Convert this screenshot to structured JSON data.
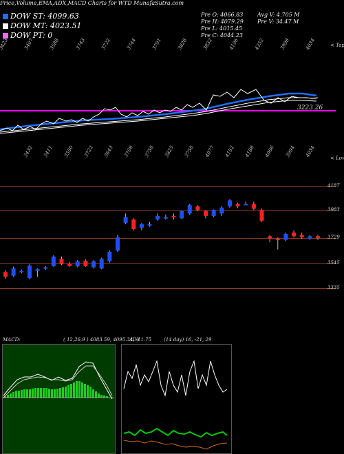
{
  "header": {
    "title": "Price,Volume,EMA,ADX,MACD Charts for WTD MunafaSutra.com"
  },
  "legend": [
    {
      "label": "DOW ST: 4099.63",
      "color": "#1e6fff"
    },
    {
      "label": "DOW MT: 4023.51",
      "color": "#ffffff"
    },
    {
      "label": "DOW PT: 0",
      "color": "#ff66ff"
    }
  ],
  "ohlc": {
    "open": "Pre  O: 4066.83",
    "high": "Pre  H: 4079.29",
    "low": "Pre  L: 4015.45",
    "close": "Pre  C: 4044.23",
    "avg_vol": "Avg V: 4.705 M",
    "pre_vol": "Pre  V: 34.47 M"
  },
  "top_ticks": [
    "3423",
    "3407",
    "3588",
    "3743",
    "3722",
    "3744",
    "3791",
    "3828",
    "3832",
    "4196",
    "4252",
    "3998",
    "4034"
  ],
  "mid_ticks": [
    "3432",
    "3411",
    "3550",
    "3722",
    "3643",
    "3708",
    "3758",
    "3825",
    "3758",
    "4077",
    "4152",
    "4188",
    "4066",
    "3994",
    "4034"
  ],
  "top_right_label": "< Topp",
  "mid_right_label": "< Lower",
  "pt_value_label": "3223.26",
  "macd_label": "MACD:",
  "macd_values": "( 12,26,9 ) 4083.59,  4095.34,  -11.75",
  "adx_label": "ADX",
  "adx_values": "(14 day) 16,  -21,  29",
  "chart_data": {
    "type": "candlestick",
    "y_axis_levels": [
      4187,
      3983,
      3729,
      3545,
      3335
    ],
    "candles": [
      {
        "o": 3470,
        "c": 3430,
        "h": 3485,
        "l": 3415
      },
      {
        "o": 3440,
        "c": 3500,
        "h": 3515,
        "l": 3430
      },
      {
        "o": 3470,
        "c": 3480,
        "h": 3490,
        "l": 3460
      },
      {
        "o": 3420,
        "c": 3525,
        "h": 3535,
        "l": 3410
      },
      {
        "o": 3480,
        "c": 3495,
        "h": 3500,
        "l": 3430
      },
      {
        "o": 3500,
        "c": 3510,
        "h": 3520,
        "l": 3490
      },
      {
        "o": 3520,
        "c": 3600,
        "h": 3610,
        "l": 3515
      },
      {
        "o": 3580,
        "c": 3540,
        "h": 3600,
        "l": 3530
      },
      {
        "o": 3540,
        "c": 3520,
        "h": 3555,
        "l": 3515
      },
      {
        "o": 3520,
        "c": 3560,
        "h": 3570,
        "l": 3510
      },
      {
        "o": 3565,
        "c": 3520,
        "h": 3575,
        "l": 3515
      },
      {
        "o": 3510,
        "c": 3560,
        "h": 3570,
        "l": 3500
      },
      {
        "o": 3500,
        "c": 3580,
        "h": 3590,
        "l": 3495
      },
      {
        "o": 3560,
        "c": 3640,
        "h": 3650,
        "l": 3550
      },
      {
        "o": 3650,
        "c": 3760,
        "h": 3780,
        "l": 3640
      },
      {
        "o": 3880,
        "c": 3930,
        "h": 3960,
        "l": 3870
      },
      {
        "o": 3910,
        "c": 3830,
        "h": 3920,
        "l": 3820
      },
      {
        "o": 3840,
        "c": 3870,
        "h": 3880,
        "l": 3820
      },
      {
        "o": 3870,
        "c": 3870,
        "h": 3890,
        "l": 3850
      },
      {
        "o": 3910,
        "c": 3940,
        "h": 3960,
        "l": 3900
      },
      {
        "o": 3920,
        "c": 3930,
        "h": 3950,
        "l": 3910
      },
      {
        "o": 3940,
        "c": 3930,
        "h": 3960,
        "l": 3910
      },
      {
        "o": 3920,
        "c": 3980,
        "h": 3985,
        "l": 3915
      },
      {
        "o": 3960,
        "c": 4030,
        "h": 4040,
        "l": 3950
      },
      {
        "o": 4020,
        "c": 3990,
        "h": 4030,
        "l": 3980
      },
      {
        "o": 3980,
        "c": 3940,
        "h": 3990,
        "l": 3920
      },
      {
        "o": 3940,
        "c": 3990,
        "h": 3995,
        "l": 3930
      },
      {
        "o": 3960,
        "c": 4010,
        "h": 4020,
        "l": 3940
      },
      {
        "o": 4020,
        "c": 4070,
        "h": 4080,
        "l": 4010
      },
      {
        "o": 4040,
        "c": 4020,
        "h": 4050,
        "l": 4005
      },
      {
        "o": 4040,
        "c": 4040,
        "h": 4060,
        "l": 4030
      },
      {
        "o": 4040,
        "c": 4000,
        "h": 4060,
        "l": 3990
      },
      {
        "o": 3990,
        "c": 3900,
        "h": 4000,
        "l": 3890
      },
      {
        "o": 3770,
        "c": 3750,
        "h": 3780,
        "l": 3720
      },
      {
        "o": 3750,
        "c": 3740,
        "h": 3760,
        "l": 3660
      },
      {
        "o": 3740,
        "c": 3790,
        "h": 3800,
        "l": 3730
      },
      {
        "o": 3800,
        "c": 3770,
        "h": 3820,
        "l": 3760
      },
      {
        "o": 3780,
        "c": 3760,
        "h": 3800,
        "l": 3750
      },
      {
        "o": 3750,
        "c": 3770,
        "h": 3780,
        "l": 3740
      },
      {
        "o": 3770,
        "c": 3755,
        "h": 3780,
        "l": 3740
      }
    ]
  }
}
